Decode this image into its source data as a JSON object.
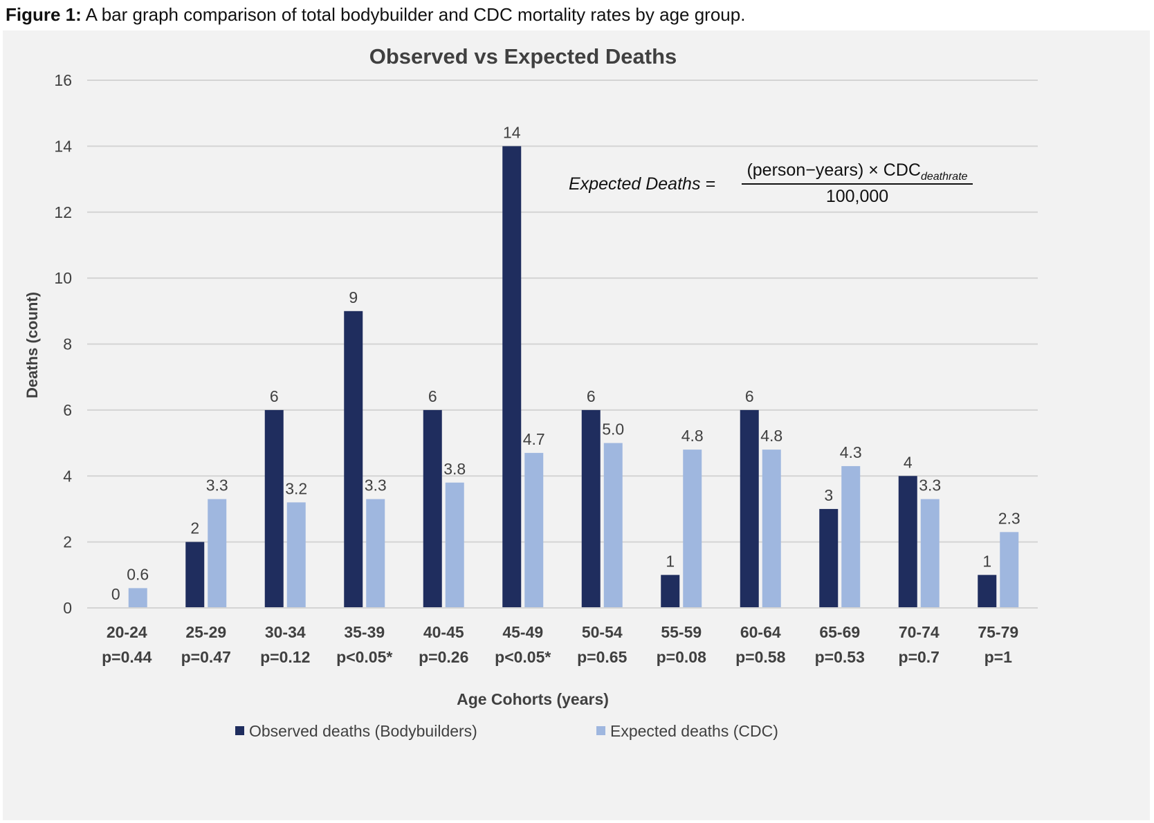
{
  "figure": {
    "caption_label": "Figure 1:",
    "caption_text": " A bar graph comparison of total bodybuilder and CDC mortality rates by age group."
  },
  "formula": {
    "lhs": "Expected Deaths =",
    "numerator_main": "(person−years) × CDC",
    "numerator_sub": "deathrate",
    "denominator": "100,000"
  },
  "colors": {
    "observed": "#1f2d5e",
    "expected": "#9fb7df",
    "grid": "#d4d4d4",
    "background": "#f2f2f2",
    "text": "#404040"
  },
  "chart_data": {
    "type": "bar",
    "title": "Observed vs Expected Deaths",
    "xlabel": "Age Cohorts (years)",
    "ylabel": "Deaths (count)",
    "ylim": [
      0,
      16
    ],
    "yticks": [
      0,
      2,
      4,
      6,
      8,
      10,
      12,
      14,
      16
    ],
    "grid": true,
    "legend_position": "bottom",
    "categories": [
      "20-24",
      "25-29",
      "30-34",
      "35-39",
      "40-45",
      "45-49",
      "50-54",
      "55-59",
      "60-64",
      "65-69",
      "70-74",
      "75-79"
    ],
    "p_values": [
      "p=0.44",
      "p=0.47",
      "p=0.12",
      "p<0.05*",
      "p=0.26",
      "p<0.05*",
      "p=0.65",
      "p=0.08",
      "p=0.58",
      "p=0.53",
      "p=0.7",
      "p=1"
    ],
    "series": [
      {
        "name": "Observed deaths (Bodybuilders)",
        "values": [
          0,
          2,
          6,
          9,
          6,
          14,
          6,
          1,
          6,
          3,
          4,
          1
        ],
        "labels": [
          "0",
          "2",
          "6",
          "9",
          "6",
          "14",
          "6",
          "1",
          "6",
          "3",
          "4",
          "1"
        ]
      },
      {
        "name": "Expected deaths (CDC)",
        "values": [
          0.6,
          3.3,
          3.2,
          3.3,
          3.8,
          4.7,
          5.0,
          4.8,
          4.8,
          4.3,
          3.3,
          2.3
        ],
        "labels": [
          "0.6",
          "3.3",
          "3.2",
          "3.3",
          "3.8",
          "4.7",
          "5.0",
          "4.8",
          "4.8",
          "4.3",
          "3.3",
          "2.3"
        ]
      }
    ]
  }
}
